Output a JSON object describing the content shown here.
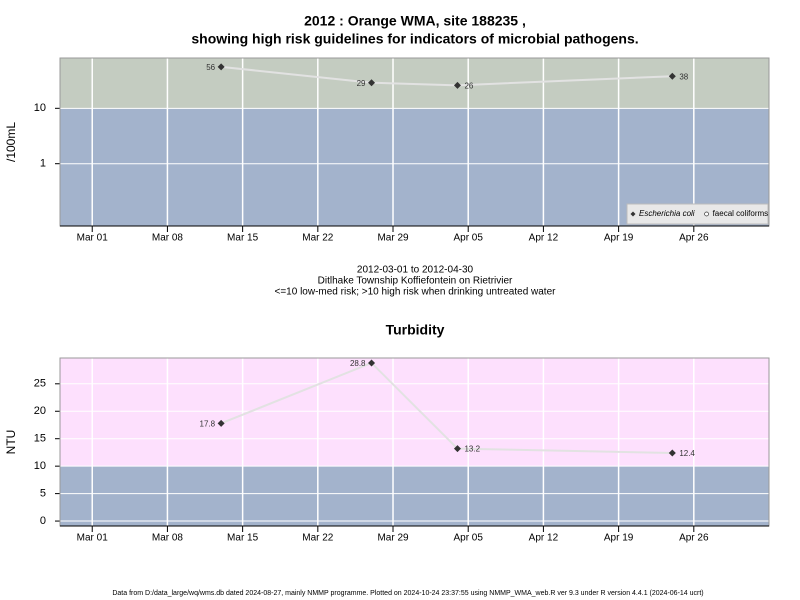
{
  "chart_data": [
    {
      "type": "line",
      "title": "2012 : Orange WMA, site 188235 ,",
      "subtitle": "showing high risk guidelines for indicators of microbial pathogens.",
      "ylabel": "/100mL",
      "log_y": true,
      "x": [
        "2012-03-13",
        "2012-03-27",
        "2012-04-04",
        "2012-04-24"
      ],
      "xlim": [
        "2012-02-27",
        "2012-05-03"
      ],
      "xticks": [
        {
          "value": "2012-03-01",
          "label": "Mar 01"
        },
        {
          "value": "2012-03-08",
          "label": "Mar 08"
        },
        {
          "value": "2012-03-15",
          "label": "Mar 15"
        },
        {
          "value": "2012-03-22",
          "label": "Mar 22"
        },
        {
          "value": "2012-03-29",
          "label": "Mar 29"
        },
        {
          "value": "2012-04-05",
          "label": "Apr 05"
        },
        {
          "value": "2012-04-12",
          "label": "Apr 12"
        },
        {
          "value": "2012-04-19",
          "label": "Apr 19"
        },
        {
          "value": "2012-04-26",
          "label": "Apr 26"
        }
      ],
      "ylim": [
        0.075,
        81
      ],
      "yticks": [
        1,
        10
      ],
      "grid": true,
      "threshold": 10,
      "above_color": "#c4ccc1",
      "below_color": "#a3b3cc",
      "line_color": "#e2e2e2",
      "legend": "bottom-right",
      "series": [
        {
          "name": "Escherichia coli",
          "color": "#333333",
          "marker": "diamond",
          "values": [
            56,
            29,
            26,
            38
          ]
        },
        {
          "name": "faecal coliforms",
          "color": "#ffffff",
          "marker": "circle",
          "values": [
            null,
            null,
            null,
            null
          ]
        }
      ]
    },
    {
      "type": "line",
      "title": "Turbidity",
      "ylabel": "NTU",
      "log_y": false,
      "x": [
        "2012-03-13",
        "2012-03-27",
        "2012-04-04",
        "2012-04-24"
      ],
      "xlim": [
        "2012-02-27",
        "2012-05-03"
      ],
      "xticks": [
        {
          "value": "2012-03-01",
          "label": "Mar 01"
        },
        {
          "value": "2012-03-08",
          "label": "Mar 08"
        },
        {
          "value": "2012-03-15",
          "label": "Mar 15"
        },
        {
          "value": "2012-03-22",
          "label": "Mar 22"
        },
        {
          "value": "2012-03-29",
          "label": "Mar 29"
        },
        {
          "value": "2012-04-05",
          "label": "Apr 05"
        },
        {
          "value": "2012-04-12",
          "label": "Apr 12"
        },
        {
          "value": "2012-04-19",
          "label": "Apr 19"
        },
        {
          "value": "2012-04-26",
          "label": "Apr 26"
        }
      ],
      "ylim": [
        -0.9,
        29.7
      ],
      "yticks": [
        0,
        5,
        10,
        15,
        20,
        25
      ],
      "grid": true,
      "threshold": 10,
      "above_color": "#fde0fd",
      "below_color": "#a3b3cc",
      "line_color": "#e2e2e2",
      "series": [
        {
          "name": "Turbidity",
          "color": "#333333",
          "marker": "diamond",
          "values": [
            17.8,
            28.8,
            13.2,
            12.4
          ]
        }
      ]
    }
  ],
  "caption": [
    "2012-03-01 to 2012-04-30",
    "Ditlhake Township Koffiefontein on Rietrivier",
    "<=10 low-med risk; >10 high risk when drinking untreated water"
  ],
  "footer": "Data from D:/data_large/wq/wms.db dated 2024-08-27, mainly NMMP programme. Plotted on 2024-10-24 23:37:55 using NMMP_WMA_web.R ver 9.3 under R version 4.4.1 (2024-06-14 ucrt)"
}
